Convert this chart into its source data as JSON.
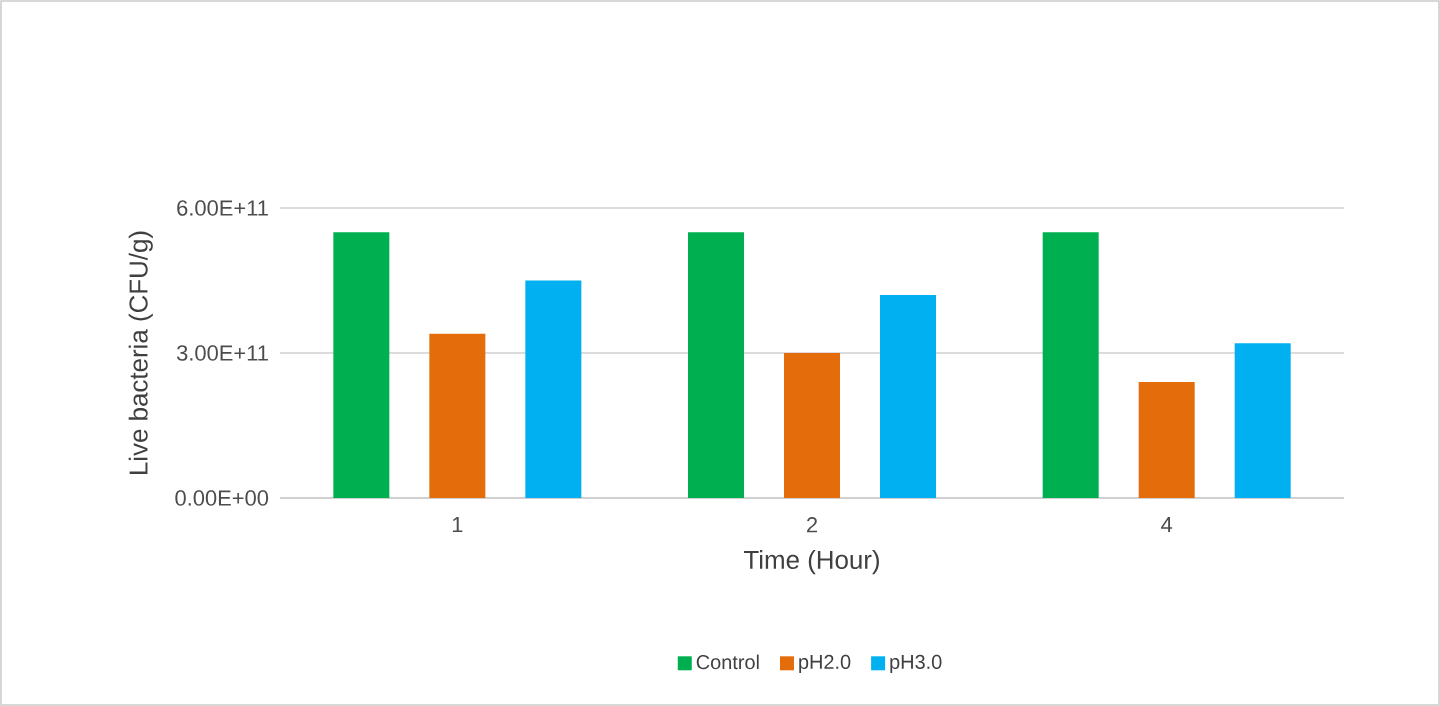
{
  "chart_data": {
    "type": "bar",
    "xlabel": "Time (Hour)",
    "ylabel": "Live bacteria (CFU/g)",
    "categories": [
      "1",
      "2",
      "4"
    ],
    "series": [
      {
        "name": "Control",
        "color": "#00b050",
        "values": [
          550000000000.0,
          550000000000.0,
          550000000000.0
        ]
      },
      {
        "name": "pH2.0",
        "color": "#e46c0a",
        "values": [
          340000000000.0,
          300000000000.0,
          240000000000.0
        ]
      },
      {
        "name": "pH3.0",
        "color": "#00b0f0",
        "values": [
          450000000000.0,
          420000000000.0,
          320000000000.0
        ]
      }
    ],
    "ylim": [
      0,
      600000000000.0
    ],
    "yticks": [
      {
        "value": 0,
        "label": "0.00E+00"
      },
      {
        "value": 300000000000.0,
        "label": "3.00E+11"
      },
      {
        "value": 600000000000.0,
        "label": "6.00E+11"
      }
    ],
    "grid": "y",
    "legend": "bottom"
  }
}
